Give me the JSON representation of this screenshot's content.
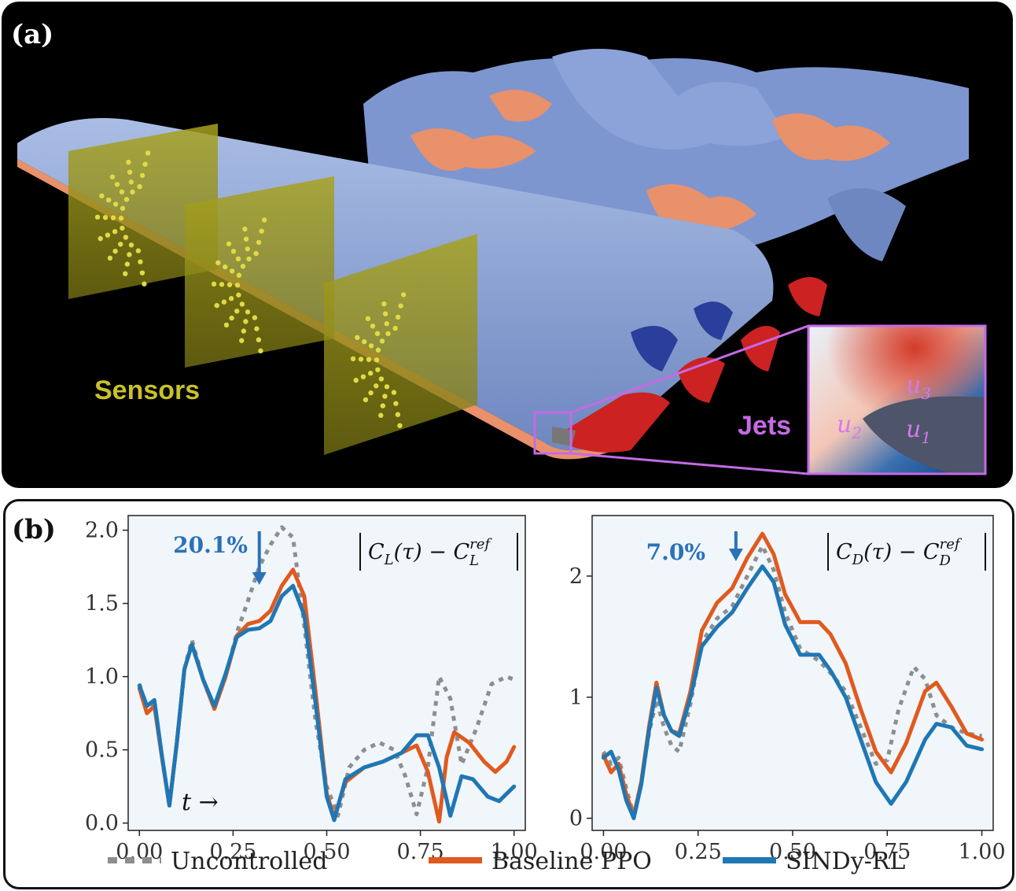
{
  "panel_a": {
    "label": "(a)",
    "sensors_label": "Sensors",
    "jets_label": "Jets",
    "inset_labels": [
      "u3",
      "u2",
      "u1"
    ],
    "colors": {
      "sensor": "#c9c12a",
      "jets": "#c46ae6",
      "vortex_blue": "#7d96cf",
      "vortex_orange": "#e8916b",
      "wing_red": "#cc2222"
    }
  },
  "panel_b": {
    "label": "(b)",
    "time_arrow": "t →",
    "legend": [
      {
        "label": "Uncontrolled",
        "color": "#8e8e8e",
        "style": "dotted"
      },
      {
        "label": "Baseline PPO",
        "color": "#e05a1f",
        "style": "solid"
      },
      {
        "label": "SINDy-RL",
        "color": "#1f77b4",
        "style": "solid"
      }
    ]
  },
  "chart_data": [
    {
      "type": "line",
      "title": "|C_L(τ) − C_L^ref|",
      "xlabel": "",
      "ylabel": "",
      "xlim": [
        -0.03,
        1.03
      ],
      "ylim": [
        -0.05,
        2.1
      ],
      "xticks": [
        "0.00",
        "0.25",
        "0.50",
        "0.75",
        "1.00"
      ],
      "yticks": [
        "0.0",
        "0.5",
        "1.0",
        "1.5",
        "2.0"
      ],
      "annotation": {
        "text": "20.1%",
        "x": 0.31,
        "y": 1.9
      },
      "arrow_x": 0.32,
      "series": [
        {
          "name": "Uncontrolled",
          "points": [
            [
              0.0,
              0.95
            ],
            [
              0.02,
              0.78
            ],
            [
              0.04,
              0.82
            ],
            [
              0.06,
              0.45
            ],
            [
              0.08,
              0.12
            ],
            [
              0.1,
              0.55
            ],
            [
              0.12,
              1.05
            ],
            [
              0.14,
              1.25
            ],
            [
              0.17,
              0.98
            ],
            [
              0.2,
              0.78
            ],
            [
              0.23,
              1.0
            ],
            [
              0.26,
              1.3
            ],
            [
              0.29,
              1.52
            ],
            [
              0.32,
              1.75
            ],
            [
              0.35,
              1.9
            ],
            [
              0.38,
              2.02
            ],
            [
              0.41,
              1.95
            ],
            [
              0.44,
              1.35
            ],
            [
              0.47,
              0.7
            ],
            [
              0.5,
              0.25
            ],
            [
              0.53,
              0.05
            ],
            [
              0.56,
              0.38
            ],
            [
              0.6,
              0.5
            ],
            [
              0.64,
              0.55
            ],
            [
              0.68,
              0.5
            ],
            [
              0.71,
              0.32
            ],
            [
              0.74,
              0.06
            ],
            [
              0.77,
              0.38
            ],
            [
              0.8,
              1.0
            ],
            [
              0.83,
              0.85
            ],
            [
              0.86,
              0.4
            ],
            [
              0.9,
              0.65
            ],
            [
              0.94,
              0.95
            ],
            [
              0.98,
              1.0
            ],
            [
              1.0,
              0.98
            ]
          ]
        },
        {
          "name": "Baseline PPO",
          "points": [
            [
              0.0,
              0.92
            ],
            [
              0.02,
              0.75
            ],
            [
              0.04,
              0.8
            ],
            [
              0.06,
              0.45
            ],
            [
              0.08,
              0.12
            ],
            [
              0.1,
              0.55
            ],
            [
              0.12,
              1.05
            ],
            [
              0.14,
              1.22
            ],
            [
              0.17,
              0.98
            ],
            [
              0.2,
              0.78
            ],
            [
              0.23,
              1.0
            ],
            [
              0.26,
              1.28
            ],
            [
              0.29,
              1.36
            ],
            [
              0.32,
              1.38
            ],
            [
              0.35,
              1.45
            ],
            [
              0.38,
              1.62
            ],
            [
              0.41,
              1.73
            ],
            [
              0.44,
              1.55
            ],
            [
              0.47,
              0.9
            ],
            [
              0.5,
              0.2
            ],
            [
              0.52,
              0.04
            ],
            [
              0.55,
              0.28
            ],
            [
              0.6,
              0.38
            ],
            [
              0.65,
              0.42
            ],
            [
              0.7,
              0.48
            ],
            [
              0.74,
              0.53
            ],
            [
              0.77,
              0.35
            ],
            [
              0.8,
              0.01
            ],
            [
              0.82,
              0.45
            ],
            [
              0.84,
              0.62
            ],
            [
              0.88,
              0.55
            ],
            [
              0.92,
              0.42
            ],
            [
              0.95,
              0.35
            ],
            [
              0.98,
              0.42
            ],
            [
              1.0,
              0.52
            ]
          ]
        },
        {
          "name": "SINDy-RL",
          "points": [
            [
              0.0,
              0.94
            ],
            [
              0.02,
              0.8
            ],
            [
              0.04,
              0.84
            ],
            [
              0.06,
              0.46
            ],
            [
              0.08,
              0.12
            ],
            [
              0.1,
              0.55
            ],
            [
              0.12,
              1.05
            ],
            [
              0.14,
              1.22
            ],
            [
              0.17,
              0.98
            ],
            [
              0.2,
              0.8
            ],
            [
              0.23,
              1.02
            ],
            [
              0.26,
              1.27
            ],
            [
              0.29,
              1.32
            ],
            [
              0.32,
              1.33
            ],
            [
              0.35,
              1.38
            ],
            [
              0.38,
              1.55
            ],
            [
              0.41,
              1.62
            ],
            [
              0.44,
              1.42
            ],
            [
              0.47,
              0.82
            ],
            [
              0.5,
              0.18
            ],
            [
              0.52,
              0.02
            ],
            [
              0.55,
              0.3
            ],
            [
              0.6,
              0.38
            ],
            [
              0.65,
              0.42
            ],
            [
              0.7,
              0.48
            ],
            [
              0.74,
              0.6
            ],
            [
              0.77,
              0.6
            ],
            [
              0.8,
              0.38
            ],
            [
              0.83,
              0.05
            ],
            [
              0.86,
              0.32
            ],
            [
              0.89,
              0.3
            ],
            [
              0.93,
              0.18
            ],
            [
              0.96,
              0.15
            ],
            [
              1.0,
              0.25
            ]
          ]
        }
      ]
    },
    {
      "type": "line",
      "title": "|C_D(τ) − C_D^ref|",
      "xlabel": "",
      "ylabel": "",
      "xlim": [
        -0.03,
        1.03
      ],
      "ylim": [
        -0.1,
        2.5
      ],
      "xticks": [
        "0.00",
        "0.25",
        "0.50",
        "0.75",
        "1.00"
      ],
      "yticks": [
        "0",
        "1",
        "2"
      ],
      "annotation": {
        "text": "7.0%",
        "x": 0.29,
        "y": 2.2
      },
      "arrow_x": 0.35,
      "series": [
        {
          "name": "Uncontrolled",
          "points": [
            [
              0.0,
              0.55
            ],
            [
              0.02,
              0.45
            ],
            [
              0.04,
              0.5
            ],
            [
              0.06,
              0.25
            ],
            [
              0.08,
              0.02
            ],
            [
              0.1,
              0.3
            ],
            [
              0.12,
              0.7
            ],
            [
              0.14,
              0.98
            ],
            [
              0.16,
              0.75
            ],
            [
              0.18,
              0.6
            ],
            [
              0.2,
              0.55
            ],
            [
              0.23,
              0.95
            ],
            [
              0.26,
              1.45
            ],
            [
              0.3,
              1.65
            ],
            [
              0.34,
              1.75
            ],
            [
              0.38,
              2.0
            ],
            [
              0.42,
              2.25
            ],
            [
              0.45,
              2.05
            ],
            [
              0.48,
              1.7
            ],
            [
              0.52,
              1.4
            ],
            [
              0.57,
              1.3
            ],
            [
              0.6,
              1.2
            ],
            [
              0.64,
              1.05
            ],
            [
              0.68,
              0.75
            ],
            [
              0.72,
              0.45
            ],
            [
              0.75,
              0.48
            ],
            [
              0.78,
              0.9
            ],
            [
              0.82,
              1.25
            ],
            [
              0.85,
              1.15
            ],
            [
              0.88,
              0.85
            ],
            [
              0.92,
              0.75
            ],
            [
              0.96,
              0.7
            ],
            [
              1.0,
              0.68
            ]
          ]
        },
        {
          "name": "Baseline PPO",
          "points": [
            [
              0.0,
              0.52
            ],
            [
              0.02,
              0.38
            ],
            [
              0.04,
              0.45
            ],
            [
              0.06,
              0.2
            ],
            [
              0.08,
              0.02
            ],
            [
              0.1,
              0.3
            ],
            [
              0.12,
              0.75
            ],
            [
              0.14,
              1.12
            ],
            [
              0.16,
              0.85
            ],
            [
              0.18,
              0.72
            ],
            [
              0.2,
              0.7
            ],
            [
              0.23,
              1.05
            ],
            [
              0.26,
              1.55
            ],
            [
              0.3,
              1.78
            ],
            [
              0.34,
              1.9
            ],
            [
              0.38,
              2.15
            ],
            [
              0.42,
              2.35
            ],
            [
              0.45,
              2.18
            ],
            [
              0.48,
              1.85
            ],
            [
              0.52,
              1.62
            ],
            [
              0.57,
              1.62
            ],
            [
              0.6,
              1.52
            ],
            [
              0.64,
              1.28
            ],
            [
              0.68,
              0.9
            ],
            [
              0.72,
              0.55
            ],
            [
              0.76,
              0.38
            ],
            [
              0.8,
              0.62
            ],
            [
              0.85,
              1.05
            ],
            [
              0.88,
              1.12
            ],
            [
              0.92,
              0.92
            ],
            [
              0.96,
              0.7
            ],
            [
              1.0,
              0.65
            ]
          ]
        },
        {
          "name": "SINDy-RL",
          "points": [
            [
              0.0,
              0.5
            ],
            [
              0.02,
              0.55
            ],
            [
              0.04,
              0.4
            ],
            [
              0.06,
              0.15
            ],
            [
              0.08,
              0.0
            ],
            [
              0.1,
              0.28
            ],
            [
              0.12,
              0.72
            ],
            [
              0.14,
              1.08
            ],
            [
              0.16,
              0.85
            ],
            [
              0.18,
              0.72
            ],
            [
              0.2,
              0.68
            ],
            [
              0.23,
              1.0
            ],
            [
              0.26,
              1.42
            ],
            [
              0.3,
              1.58
            ],
            [
              0.34,
              1.7
            ],
            [
              0.38,
              1.9
            ],
            [
              0.42,
              2.08
            ],
            [
              0.45,
              1.95
            ],
            [
              0.48,
              1.6
            ],
            [
              0.52,
              1.35
            ],
            [
              0.57,
              1.35
            ],
            [
              0.6,
              1.22
            ],
            [
              0.64,
              1.0
            ],
            [
              0.68,
              0.65
            ],
            [
              0.72,
              0.3
            ],
            [
              0.76,
              0.12
            ],
            [
              0.8,
              0.3
            ],
            [
              0.85,
              0.65
            ],
            [
              0.88,
              0.78
            ],
            [
              0.92,
              0.75
            ],
            [
              0.96,
              0.6
            ],
            [
              1.0,
              0.57
            ]
          ]
        }
      ]
    }
  ]
}
